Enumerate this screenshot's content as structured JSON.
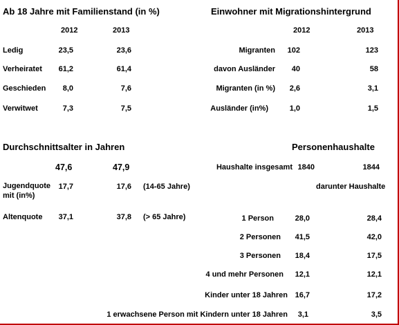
{
  "marital_status": {
    "title": "Ab 18 Jahre mit Familienstand (in %)",
    "columns": [
      "2012",
      "2013"
    ],
    "rows": [
      {
        "label": "Ledig",
        "values": [
          "23,5",
          "23,6"
        ]
      },
      {
        "label": "Verheiratet",
        "values": [
          "61,2",
          "61,4"
        ]
      },
      {
        "label": "Geschieden",
        "values": [
          "8,0",
          "7,6"
        ]
      },
      {
        "label": "Verwitwet",
        "values": [
          "7,3",
          "7,5"
        ]
      }
    ]
  },
  "migration": {
    "title": "Einwohner mit Migrationshintergrund",
    "columns": [
      "2012",
      "2013"
    ],
    "rows": [
      {
        "label": "Migranten",
        "values": [
          "102",
          "123"
        ]
      },
      {
        "label": "davon Ausländer",
        "values": [
          "40",
          "58"
        ]
      },
      {
        "label": "Migranten (in %)",
        "values": [
          "2,6",
          "3,1"
        ]
      },
      {
        "label": "Ausländer (in%)",
        "values": [
          "1,0",
          "1,5"
        ]
      }
    ]
  },
  "average_age": {
    "title": "Durchschnittsalter in Jahren",
    "values": [
      "47,6",
      "47,9"
    ],
    "rows": [
      {
        "label": "Jugendquote mit (in%)",
        "values": [
          "17,7",
          "17,6"
        ],
        "note": "(14-65 Jahre)"
      },
      {
        "label": "Altenquote",
        "values": [
          "37,1",
          "37,8"
        ],
        "note": "(> 65 Jahre)"
      }
    ]
  },
  "households": {
    "title": "Personenhaushalte",
    "total": {
      "label": "Haushalte insgesamt",
      "values": [
        "1840",
        "1844"
      ]
    },
    "subheading": "darunter Haushalte",
    "rows": [
      {
        "label": "1 Person",
        "values": [
          "28,0",
          "28,4"
        ]
      },
      {
        "label": "2 Personen",
        "values": [
          "41,5",
          "42,0"
        ]
      },
      {
        "label": "3 Personen",
        "values": [
          "18,4",
          "17,5"
        ]
      },
      {
        "label": "4 und mehr Personen",
        "values": [
          "12,1",
          "12,1"
        ]
      },
      {
        "label": "Kinder unter 18 Jahren",
        "values": [
          "16,7",
          "17,2"
        ]
      },
      {
        "label": "1 erwachsene Person mit Kindern unter 18 Jahren",
        "values": [
          "3,1",
          "3,5"
        ]
      }
    ]
  }
}
